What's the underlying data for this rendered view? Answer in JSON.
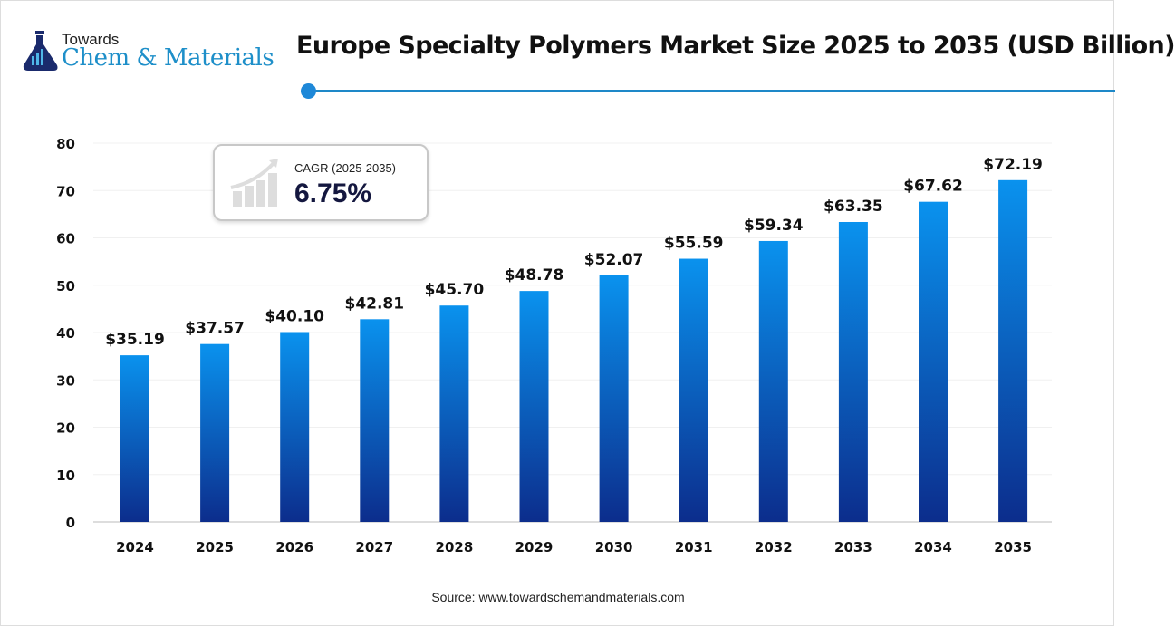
{
  "logo": {
    "line1": "Towards",
    "line2": "Chem & Materials"
  },
  "title": "Europe Specialty Polymers Market Size 2025 to 2035 (USD Billion)",
  "cagr": {
    "label": "CAGR (2025-2035)",
    "value": "6.75%"
  },
  "source": "Source: www.towardschemandmaterials.com",
  "colors": {
    "bar_top": "#0a92ee",
    "bar_bottom": "#0c2d8c",
    "accent": "#1e88c8"
  },
  "chart_data": {
    "type": "bar",
    "title": "Europe Specialty Polymers Market Size 2025 to 2035 (USD Billion)",
    "categories": [
      "2024",
      "2025",
      "2026",
      "2027",
      "2028",
      "2029",
      "2030",
      "2031",
      "2032",
      "2033",
      "2034",
      "2035"
    ],
    "values": [
      35.19,
      37.57,
      40.1,
      42.81,
      45.7,
      48.78,
      52.07,
      55.59,
      59.34,
      63.35,
      67.62,
      72.19
    ],
    "data_labels": [
      "$35.19",
      "$37.57",
      "$40.10",
      "$42.81",
      "$45.70",
      "$48.78",
      "$52.07",
      "$55.59",
      "$59.34",
      "$63.35",
      "$67.62",
      "$72.19"
    ],
    "yticks": [
      0,
      10,
      20,
      30,
      40,
      50,
      60,
      70,
      80
    ],
    "ylim": [
      0,
      80
    ],
    "xlabel": "",
    "ylabel": "",
    "grid": true,
    "legend": "none"
  }
}
